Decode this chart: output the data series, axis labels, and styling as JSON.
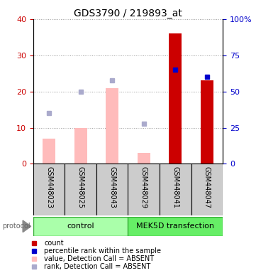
{
  "title": "GDS3790 / 219893_at",
  "samples": [
    "GSM448023",
    "GSM448025",
    "GSM448043",
    "GSM448029",
    "GSM448041",
    "GSM448047"
  ],
  "absent_mask": [
    true,
    true,
    true,
    true,
    false,
    false
  ],
  "red_bars": [
    7,
    10,
    21,
    3,
    36,
    23
  ],
  "blue_squares_left": [
    14,
    20,
    23,
    11,
    26,
    24
  ],
  "ylim_left": [
    0,
    40
  ],
  "ylim_right": [
    0,
    100
  ],
  "yticks_left": [
    0,
    10,
    20,
    30,
    40
  ],
  "ytick_labels_left": [
    "0",
    "10",
    "20",
    "30",
    "40"
  ],
  "yticks_right_pct": [
    0,
    25,
    50,
    75,
    100
  ],
  "ytick_labels_right": [
    "0",
    "25",
    "50",
    "75",
    "100%"
  ],
  "bar_color_absent": "#ffbbbb",
  "bar_color_present": "#cc0000",
  "square_color_present": "#0000cc",
  "square_color_absent": "#aaaacc",
  "left_tick_color": "#cc0000",
  "right_tick_color": "#0000cc",
  "grid_color": "#999999",
  "ctrl_color": "#aaffaa",
  "mek_color": "#66ee66",
  "sample_box_color": "#cccccc",
  "legend_items": [
    {
      "color": "#cc0000",
      "label": "count"
    },
    {
      "color": "#0000cc",
      "label": "percentile rank within the sample"
    },
    {
      "color": "#ffbbbb",
      "label": "value, Detection Call = ABSENT"
    },
    {
      "color": "#aaaacc",
      "label": "rank, Detection Call = ABSENT"
    }
  ]
}
